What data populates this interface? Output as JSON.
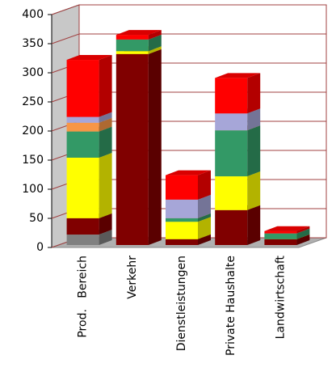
{
  "chart_data": {
    "type": "bar3d-stacked",
    "categories": [
      "Prod.   Bereich",
      "Verkehr",
      "Dienstleistungen",
      "Private Haushalte",
      "Landwirtschaft"
    ],
    "series": [
      {
        "color": "#808080",
        "values": [
          18,
          0,
          0,
          0,
          0
        ]
      },
      {
        "color": "#800000",
        "values": [
          28,
          328,
          10,
          60,
          10
        ]
      },
      {
        "color": "#ffff00",
        "values": [
          104,
          5,
          30,
          58,
          0
        ]
      },
      {
        "color": "#339966",
        "values": [
          45,
          20,
          6,
          79,
          10
        ]
      },
      {
        "color": "#f79646",
        "values": [
          15,
          0,
          0,
          0,
          0
        ]
      },
      {
        "color": "#a6a6d8",
        "values": [
          10,
          0,
          32,
          29,
          0
        ]
      },
      {
        "color": "#ff0000",
        "values": [
          98,
          8,
          42,
          61,
          4
        ]
      }
    ],
    "ylim": [
      0,
      400
    ],
    "yticks": [
      0,
      50,
      100,
      150,
      200,
      250,
      300,
      350,
      400
    ],
    "grid": true
  }
}
